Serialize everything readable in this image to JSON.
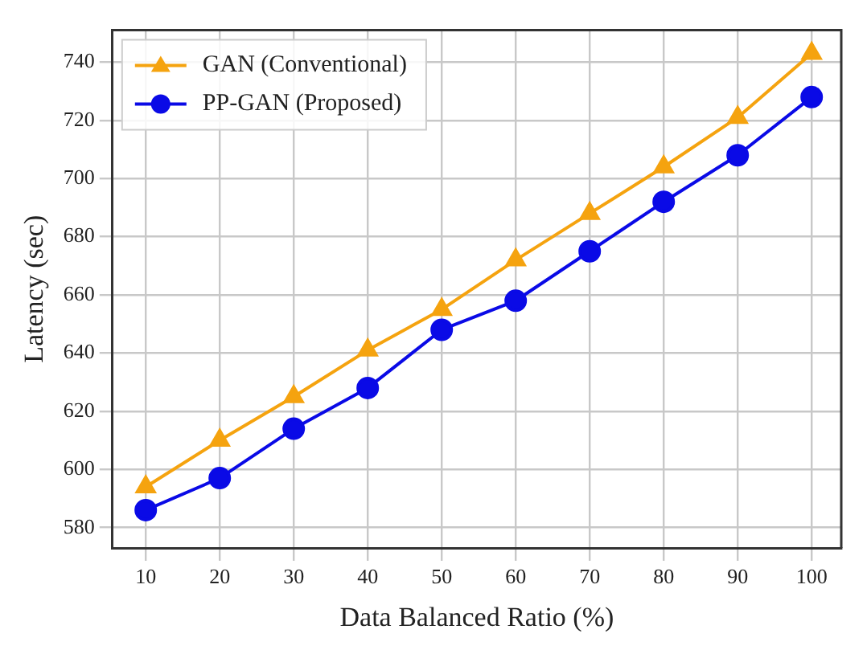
{
  "chart_data": {
    "type": "line",
    "xlabel": "Data Balanced Ratio (%)",
    "ylabel": "Latency (sec)",
    "x": [
      10,
      20,
      30,
      40,
      50,
      60,
      70,
      80,
      90,
      100
    ],
    "series": [
      {
        "name": "GAN (Conventional)",
        "color": "#f5a30f",
        "marker": "triangle",
        "values": [
          594,
          610,
          625,
          641,
          655,
          672,
          688,
          704,
          721,
          743
        ]
      },
      {
        "name": "PP-GAN (Proposed)",
        "color": "#0a0ae6",
        "marker": "circle",
        "values": [
          586,
          597,
          614,
          628,
          648,
          658,
          675,
          692,
          708,
          728
        ]
      }
    ],
    "xlim": [
      5.5,
      104
    ],
    "xticks": [
      10,
      20,
      30,
      40,
      50,
      60,
      70,
      80,
      90,
      100
    ],
    "ylim": [
      573,
      751
    ],
    "yticks": [
      580,
      600,
      620,
      640,
      660,
      680,
      700,
      720,
      740
    ],
    "grid": true,
    "legend": "top left",
    "line_style": "solid"
  }
}
